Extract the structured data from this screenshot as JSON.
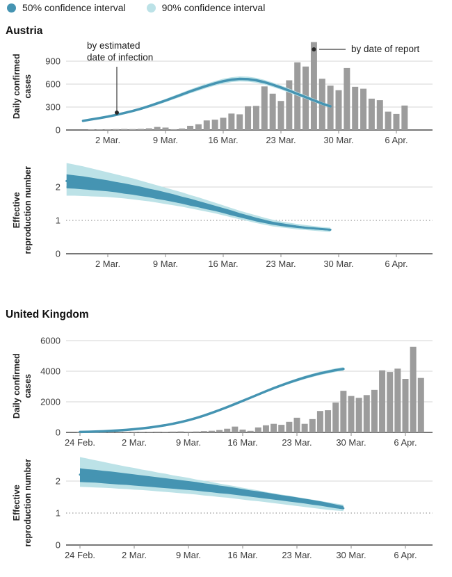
{
  "legend": {
    "items": [
      {
        "label": "50% confidence interval",
        "color": "#4594b2"
      },
      {
        "label": "90% confidence interval",
        "color": "#bce2e7"
      }
    ]
  },
  "colors": {
    "ci50": "#4594b2",
    "ci90": "#bce2e7",
    "bar": "#9c9c9c",
    "annotation": "#3a3a3a"
  },
  "chart_data": [
    {
      "id": "austria_cases",
      "type": "bar",
      "title": "Austria",
      "ylabel": "Daily confirmed cases",
      "ylabel_lines": [
        "Daily confirmed",
        "cases"
      ],
      "ylim": [
        0,
        1200
      ],
      "grid": true,
      "legend_position": "top",
      "y_ticks": [
        {
          "v": 0,
          "label": "0"
        },
        {
          "v": 300,
          "label": "300"
        },
        {
          "v": 600,
          "label": "600"
        },
        {
          "v": 900,
          "label": "900"
        }
      ],
      "x_tick_labels": [
        "2 Mar.",
        "9 Mar.",
        "16 Mar.",
        "23 Mar.",
        "30 Mar.",
        "6 Apr."
      ],
      "annotations": [
        {
          "text_lines": [
            "by estimated",
            "date of infection"
          ],
          "points_to": "line"
        },
        {
          "text_lines": [
            "by date of report"
          ],
          "points_to": "bars"
        }
      ],
      "bars": {
        "name": "by date of report",
        "start_day": -2,
        "values": [
          5,
          8,
          10,
          12,
          14,
          12,
          15,
          22,
          40,
          32,
          10,
          20,
          55,
          75,
          125,
          135,
          160,
          215,
          205,
          310,
          315,
          570,
          475,
          380,
          650,
          885,
          830,
          1150,
          670,
          580,
          520,
          810,
          565,
          540,
          410,
          390,
          240,
          210,
          320
        ]
      },
      "line": {
        "name": "by estimated date of infection",
        "start_day": -3,
        "values": [
          120,
          138,
          156,
          175,
          197,
          222,
          248,
          278,
          312,
          348,
          385,
          425,
          465,
          505,
          542,
          578,
          610,
          638,
          658,
          668,
          665,
          650,
          625,
          592,
          555,
          515,
          472,
          430,
          388,
          345,
          310
        ],
        "ci_delta": [
          11,
          12,
          12,
          13,
          14,
          15,
          16,
          17,
          18,
          20,
          21,
          23,
          25,
          26,
          28,
          29,
          30,
          32,
          32,
          33,
          33,
          32,
          31,
          30,
          28,
          27,
          25,
          23,
          22,
          20,
          18
        ]
      }
    },
    {
      "id": "austria_rt",
      "type": "area",
      "ylabel": "Effective reproduction number",
      "ylabel_lines": [
        "Effective",
        "reproduction number"
      ],
      "ylim": [
        0,
        2.8
      ],
      "y_ticks": [
        {
          "v": 0,
          "label": "0"
        },
        {
          "v": 1,
          "label": "1",
          "dotted": true
        },
        {
          "v": 2,
          "label": "2"
        }
      ],
      "x_tick_labels": [
        "2 Mar.",
        "9 Mar.",
        "16 Mar.",
        "23 Mar.",
        "30 Mar.",
        "6 Apr."
      ],
      "median": {
        "start_day": -5,
        "values": [
          2.18,
          2.16,
          2.14,
          2.11,
          2.08,
          2.05,
          2.01,
          1.97,
          1.93,
          1.88,
          1.83,
          1.78,
          1.73,
          1.67,
          1.61,
          1.55,
          1.49,
          1.43,
          1.37,
          1.3,
          1.23,
          1.16,
          1.09,
          1.03,
          0.97,
          0.92,
          0.88,
          0.84,
          0.81,
          0.78,
          0.76,
          0.74,
          0.72
        ]
      },
      "band50": {
        "start_day": -5,
        "lower": [
          1.96,
          1.95,
          1.93,
          1.91,
          1.89,
          1.87,
          1.84,
          1.8,
          1.77,
          1.73,
          1.69,
          1.64,
          1.6,
          1.55,
          1.5,
          1.44,
          1.39,
          1.33,
          1.28,
          1.22,
          1.15,
          1.09,
          1.03,
          0.97,
          0.92,
          0.87,
          0.83,
          0.8,
          0.77,
          0.75,
          0.73,
          0.71,
          0.69
        ],
        "upper": [
          2.38,
          2.35,
          2.32,
          2.28,
          2.24,
          2.2,
          2.15,
          2.11,
          2.06,
          2.01,
          1.95,
          1.9,
          1.84,
          1.78,
          1.71,
          1.65,
          1.58,
          1.51,
          1.44,
          1.37,
          1.3,
          1.22,
          1.15,
          1.08,
          1.02,
          0.96,
          0.92,
          0.88,
          0.84,
          0.81,
          0.78,
          0.76,
          0.74
        ]
      },
      "band90": {
        "start_day": -5,
        "lower": [
          1.74,
          1.74,
          1.73,
          1.72,
          1.71,
          1.7,
          1.68,
          1.66,
          1.63,
          1.6,
          1.57,
          1.53,
          1.49,
          1.45,
          1.41,
          1.36,
          1.31,
          1.26,
          1.21,
          1.15,
          1.09,
          1.03,
          0.98,
          0.92,
          0.87,
          0.82,
          0.79,
          0.76,
          0.73,
          0.71,
          0.69,
          0.67,
          0.65
        ],
        "upper": [
          2.72,
          2.67,
          2.62,
          2.56,
          2.5,
          2.44,
          2.38,
          2.32,
          2.26,
          2.19,
          2.12,
          2.05,
          1.98,
          1.91,
          1.84,
          1.76,
          1.69,
          1.61,
          1.53,
          1.45,
          1.37,
          1.29,
          1.22,
          1.15,
          1.08,
          1.02,
          0.97,
          0.93,
          0.89,
          0.86,
          0.83,
          0.8,
          0.78
        ]
      }
    },
    {
      "id": "uk_cases",
      "type": "bar",
      "title": "United Kingdom",
      "ylabel": "Daily confirmed cases",
      "ylabel_lines": [
        "Daily confirmed",
        "cases"
      ],
      "ylim": [
        0,
        6000
      ],
      "y_ticks": [
        {
          "v": 0,
          "label": "0"
        },
        {
          "v": 2000,
          "label": "2000"
        },
        {
          "v": 4000,
          "label": "4000"
        },
        {
          "v": 6000,
          "label": "6000"
        }
      ],
      "x_tick_labels": [
        "24 Feb.",
        "2 Mar.",
        "9 Mar.",
        "16 Mar.",
        "23 Mar.",
        "30 Mar.",
        "6 Apr."
      ],
      "bars": {
        "name": "by date of report",
        "start_day": 0,
        "values": [
          5,
          8,
          10,
          12,
          15,
          20,
          25,
          35,
          30,
          35,
          50,
          45,
          55,
          65,
          50,
          60,
          85,
          105,
          155,
          240,
          380,
          185,
          100,
          325,
          465,
          560,
          495,
          690,
          960,
          560,
          870,
          1400,
          1450,
          1950,
          2720,
          2380,
          2260,
          2440,
          2780,
          4060,
          3950,
          4170,
          3500,
          5600,
          3560
        ]
      },
      "line": {
        "name": "by estimated date of infection",
        "start_day": 0,
        "values": [
          30,
          40,
          55,
          75,
          100,
          130,
          165,
          210,
          260,
          320,
          390,
          470,
          565,
          675,
          800,
          940,
          1100,
          1275,
          1460,
          1655,
          1855,
          2060,
          2270,
          2480,
          2690,
          2890,
          3080,
          3260,
          3430,
          3590,
          3730,
          3860,
          3970,
          4070,
          4150
        ],
        "ci_delta": [
          5,
          5,
          6,
          6,
          7,
          8,
          9,
          10,
          11,
          13,
          15,
          17,
          20,
          23,
          26,
          30,
          35,
          40,
          45,
          50,
          56,
          62,
          68,
          73,
          79,
          85,
          90,
          95,
          100,
          105,
          108,
          112,
          115,
          118,
          120
        ]
      }
    },
    {
      "id": "uk_rt",
      "type": "area",
      "ylabel": "Effective reproduction number",
      "ylabel_lines": [
        "Effective",
        "reproduction number"
      ],
      "ylim": [
        0,
        2.8
      ],
      "y_ticks": [
        {
          "v": 0,
          "label": "0"
        },
        {
          "v": 1,
          "label": "1",
          "dotted": true
        },
        {
          "v": 2,
          "label": "2"
        }
      ],
      "x_tick_labels": [
        "24 Feb.",
        "2 Mar.",
        "9 Mar.",
        "16 Mar.",
        "23 Mar.",
        "30 Mar.",
        "6 Apr."
      ],
      "median": {
        "start_day": 0,
        "values": [
          2.2,
          2.18,
          2.16,
          2.13,
          2.11,
          2.08,
          2.06,
          2.03,
          2.01,
          1.98,
          1.96,
          1.93,
          1.91,
          1.88,
          1.85,
          1.82,
          1.79,
          1.76,
          1.73,
          1.7,
          1.66,
          1.63,
          1.59,
          1.56,
          1.52,
          1.49,
          1.45,
          1.42,
          1.38,
          1.35,
          1.31,
          1.27,
          1.23,
          1.19,
          1.15
        ]
      },
      "band50": {
        "start_day": 0,
        "lower": [
          1.97,
          1.96,
          1.95,
          1.93,
          1.91,
          1.89,
          1.88,
          1.86,
          1.84,
          1.82,
          1.8,
          1.78,
          1.76,
          1.74,
          1.72,
          1.7,
          1.67,
          1.65,
          1.62,
          1.6,
          1.57,
          1.54,
          1.51,
          1.48,
          1.45,
          1.42,
          1.39,
          1.36,
          1.33,
          1.3,
          1.26,
          1.23,
          1.19,
          1.15,
          1.12
        ],
        "upper": [
          2.4,
          2.37,
          2.35,
          2.32,
          2.3,
          2.27,
          2.24,
          2.21,
          2.18,
          2.15,
          2.12,
          2.09,
          2.06,
          2.03,
          2.0,
          1.97,
          1.93,
          1.9,
          1.86,
          1.83,
          1.79,
          1.75,
          1.71,
          1.68,
          1.64,
          1.6,
          1.56,
          1.53,
          1.49,
          1.45,
          1.41,
          1.37,
          1.32,
          1.27,
          1.22
        ]
      },
      "band90": {
        "start_day": 0,
        "lower": [
          1.82,
          1.81,
          1.8,
          1.79,
          1.78,
          1.76,
          1.75,
          1.73,
          1.72,
          1.7,
          1.68,
          1.66,
          1.64,
          1.62,
          1.6,
          1.58,
          1.55,
          1.53,
          1.5,
          1.48,
          1.45,
          1.42,
          1.39,
          1.37,
          1.34,
          1.31,
          1.28,
          1.25,
          1.22,
          1.19,
          1.16,
          1.13,
          1.1,
          1.08,
          1.06
        ],
        "upper": [
          2.75,
          2.7,
          2.65,
          2.6,
          2.55,
          2.5,
          2.45,
          2.41,
          2.36,
          2.32,
          2.27,
          2.23,
          2.18,
          2.14,
          2.1,
          2.05,
          2.01,
          1.97,
          1.92,
          1.88,
          1.84,
          1.79,
          1.75,
          1.71,
          1.66,
          1.62,
          1.58,
          1.54,
          1.5,
          1.46,
          1.42,
          1.38,
          1.34,
          1.3,
          1.26
        ]
      }
    }
  ]
}
